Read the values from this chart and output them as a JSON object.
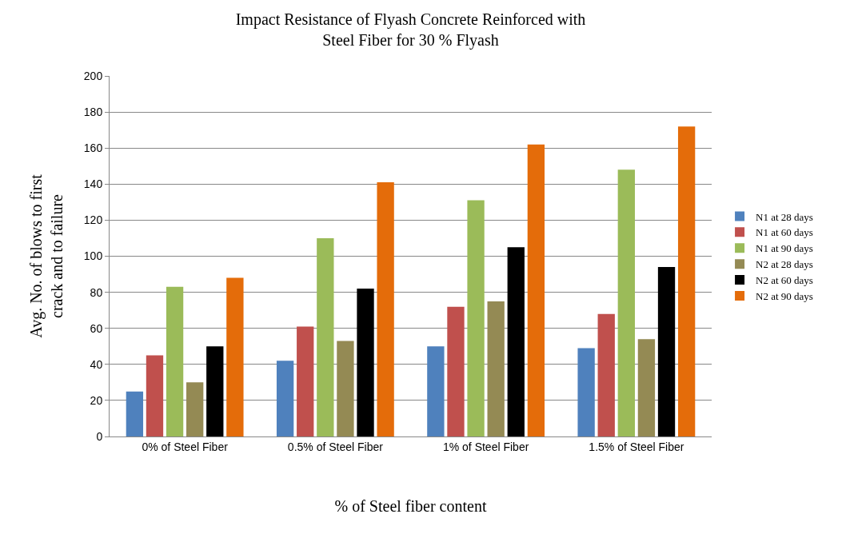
{
  "chart_data": {
    "type": "bar",
    "title": "Impact Resistance of Flyash Concrete Reinforced with\nSteel Fiber for 30 % Flyash",
    "xlabel": "% of Steel fiber content",
    "ylabel": "Avg. No. of blows to first\ncrack and to failure",
    "categories": [
      "0% of Steel Fiber",
      "0.5% of Steel Fiber",
      "1% of Steel Fiber",
      "1.5% of Steel Fiber"
    ],
    "series": [
      {
        "name": "N1 at 28 days",
        "color": "#4f81bd",
        "values": [
          25,
          42,
          50,
          49
        ]
      },
      {
        "name": "N1 at 60 days",
        "color": "#c0504d",
        "values": [
          45,
          61,
          72,
          68
        ]
      },
      {
        "name": "N1 at 90 days",
        "color": "#9bbb59",
        "values": [
          83,
          110,
          131,
          148
        ]
      },
      {
        "name": "N2 at 28 days",
        "color": "#948a54",
        "values": [
          30,
          53,
          75,
          54
        ]
      },
      {
        "name": "N2 at 60 days",
        "color": "#000000",
        "values": [
          50,
          82,
          105,
          94
        ]
      },
      {
        "name": "N2 at 90 days",
        "color": "#e46c0a",
        "values": [
          88,
          141,
          162,
          172
        ]
      }
    ],
    "ylim": [
      0,
      200
    ],
    "yticks": [
      0,
      20,
      40,
      60,
      80,
      100,
      120,
      140,
      160,
      180,
      200
    ],
    "grid": "y",
    "legend": "right"
  }
}
